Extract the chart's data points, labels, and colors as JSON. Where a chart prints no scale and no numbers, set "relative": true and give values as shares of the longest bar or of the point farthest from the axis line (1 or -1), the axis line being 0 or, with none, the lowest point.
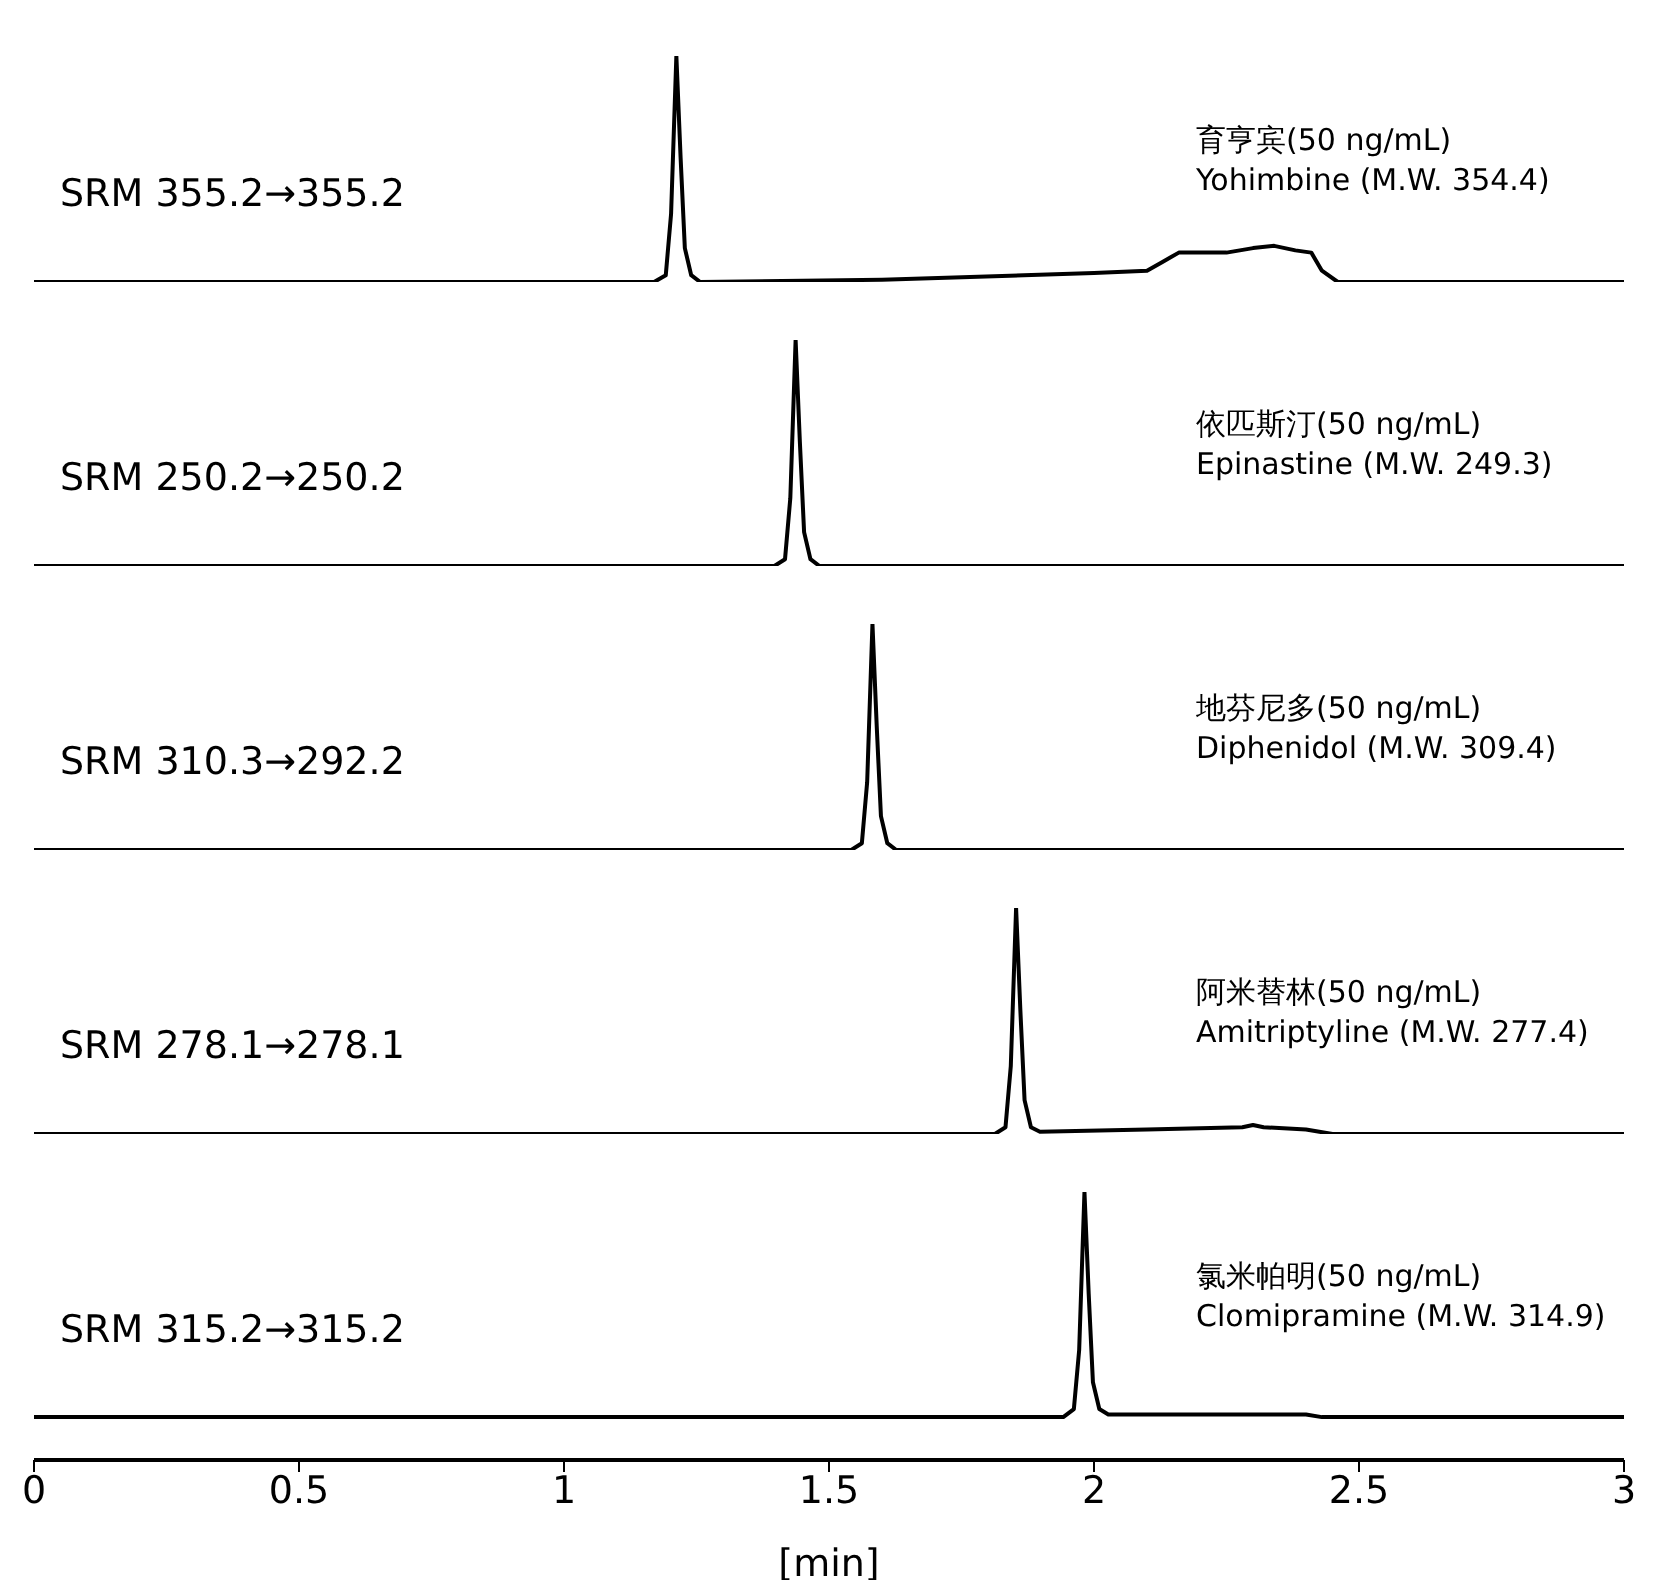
{
  "chart_data": [
    {
      "type": "line",
      "relative": true,
      "xlim": [
        0,
        3
      ],
      "xticks": [
        0,
        0.5,
        1,
        1.5,
        2,
        2.5,
        3
      ],
      "tick_labels": false,
      "annotations": [
        "SRM 355.2→355.2",
        "育亨宾(50 ng/mL)\nYohimbine (M.W. 354.4)"
      ],
      "series": [
        {
          "color": "#000000",
          "x": [
            0,
            1.17,
            1.192,
            1.202,
            1.212,
            1.22,
            1.228,
            1.24,
            1.257,
            1.6,
            2.0,
            2.1,
            2.13,
            2.16,
            2.2,
            2.25,
            2.3,
            2.34,
            2.38,
            2.41,
            2.43,
            2.46,
            3
          ],
          "values": [
            0,
            0,
            0.03,
            0.3,
            1,
            0.55,
            0.15,
            0.03,
            0,
            0.01,
            0.04,
            0.05,
            0.09,
            0.13,
            0.13,
            0.13,
            0.15,
            0.16,
            0.14,
            0.13,
            0.05,
            0,
            0
          ]
        }
      ]
    },
    {
      "type": "line",
      "relative": true,
      "xlim": [
        0,
        3
      ],
      "xticks": [
        0,
        0.5,
        1,
        1.5,
        2,
        2.5,
        3
      ],
      "tick_labels": false,
      "annotations": [
        "SRM 250.2→250.2",
        "依匹斯汀(50 ng/mL)\nEpinastine (M.W. 249.3)"
      ],
      "series": [
        {
          "color": "#000000",
          "x": [
            0,
            1.397,
            1.417,
            1.427,
            1.437,
            1.445,
            1.453,
            1.465,
            1.482,
            3
          ],
          "values": [
            0,
            0,
            0.03,
            0.3,
            1,
            0.55,
            0.15,
            0.03,
            0,
            0
          ]
        }
      ]
    },
    {
      "type": "line",
      "relative": true,
      "xlim": [
        0,
        3
      ],
      "xticks": [
        0,
        0.5,
        1,
        1.5,
        2,
        2.5,
        3
      ],
      "tick_labels": false,
      "annotations": [
        "SRM 310.3→292.2",
        "地芬尼多(50 ng/mL)\nDiphenidol (M.W. 309.4)"
      ],
      "series": [
        {
          "color": "#000000",
          "x": [
            0,
            1.542,
            1.562,
            1.572,
            1.582,
            1.59,
            1.598,
            1.61,
            1.627,
            3
          ],
          "values": [
            0,
            0,
            0.03,
            0.3,
            1,
            0.55,
            0.15,
            0.03,
            0,
            0
          ]
        }
      ]
    },
    {
      "type": "line",
      "relative": true,
      "xlim": [
        0,
        3
      ],
      "xticks": [
        0,
        0.5,
        1,
        1.5,
        2,
        2.5,
        3
      ],
      "tick_labels": false,
      "annotations": [
        "SRM 278.1→278.1",
        "阿米替林(50 ng/mL)\nAmitriptyline (M.W. 277.4)"
      ],
      "series": [
        {
          "color": "#000000",
          "x": [
            0,
            1.813,
            1.833,
            1.843,
            1.853,
            1.861,
            1.869,
            1.881,
            1.898,
            2.1,
            2.28,
            2.3,
            2.32,
            2.4,
            2.45,
            3
          ],
          "values": [
            0,
            0,
            0.03,
            0.3,
            1,
            0.55,
            0.15,
            0.03,
            0.01,
            0.02,
            0.03,
            0.04,
            0.03,
            0.02,
            0,
            0
          ]
        }
      ]
    },
    {
      "type": "line",
      "relative": true,
      "xlim": [
        0,
        3
      ],
      "xticks": [
        0,
        0.5,
        1,
        1.5,
        2,
        2.5,
        3
      ],
      "tick_labels": "x",
      "xlabel": "[min]",
      "annotations": [
        "SRM 315.2→315.2",
        "氯米帕明(50 ng/mL)\nClomipramine (M.W. 314.9)"
      ],
      "series": [
        {
          "color": "#000000",
          "x": [
            0,
            1.942,
            1.962,
            1.972,
            1.982,
            1.99,
            1.998,
            2.01,
            2.027,
            2.38,
            2.4,
            2.43,
            3
          ],
          "values": [
            0.16,
            0.16,
            0.19,
            0.41,
            1,
            0.62,
            0.29,
            0.19,
            0.17,
            0.17,
            0.17,
            0.16,
            0.16
          ]
        }
      ]
    }
  ]
}
